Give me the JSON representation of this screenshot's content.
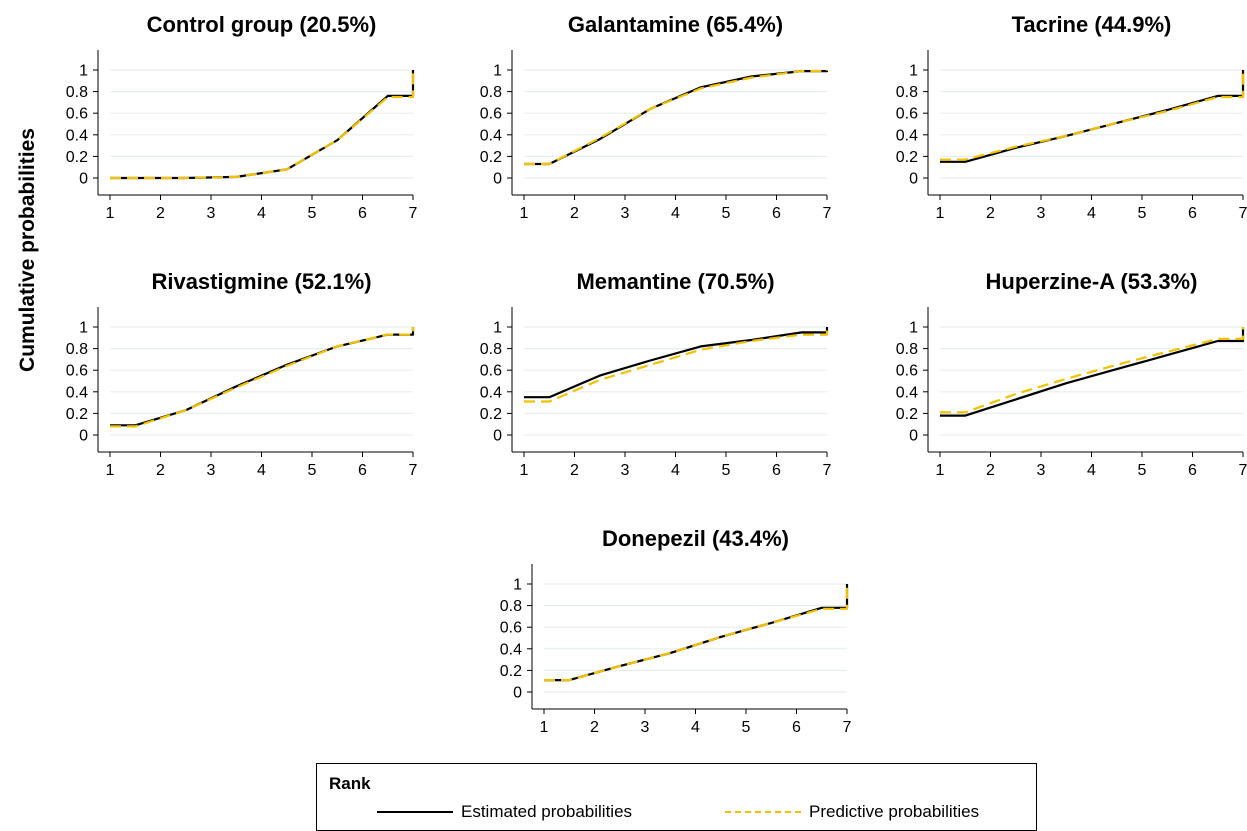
{
  "ylabel": "Cumulative probabilities",
  "colors": {
    "estimated": "#000000",
    "predictive": "#f2c200",
    "grid": "#e6efee",
    "axis": "#000000"
  },
  "legend": {
    "title": "Rank",
    "estimated_label": "Estimated probabilities",
    "predictive_label": "Predictive probabilities"
  },
  "chart_data": [
    {
      "type": "line",
      "title": "Control group (20.5%)",
      "xlabel": "",
      "ylabel": "Cumulative probabilities",
      "xlim": [
        1,
        7
      ],
      "ylim": [
        0,
        1
      ],
      "xticks": [
        "1",
        "2",
        "3",
        "4",
        "5",
        "6",
        "7"
      ],
      "yticks": [
        "0",
        "0.2",
        "0.4",
        "0.6",
        "0.8",
        "1"
      ],
      "grid": true,
      "step": true,
      "series": [
        {
          "name": "Estimated probabilities",
          "x": [
            1,
            2,
            3,
            4,
            5,
            6,
            7
          ],
          "values": [
            0.0,
            0.0,
            0.01,
            0.08,
            0.35,
            0.76,
            1.0
          ]
        },
        {
          "name": "Predictive probabilities",
          "x": [
            1,
            2,
            3,
            4,
            5,
            6,
            7
          ],
          "values": [
            0.0,
            0.0,
            0.01,
            0.08,
            0.35,
            0.75,
            1.0
          ]
        }
      ]
    },
    {
      "type": "line",
      "title": "Galantamine (65.4%)",
      "xlabel": "",
      "ylabel": "",
      "xlim": [
        1,
        7
      ],
      "ylim": [
        0,
        1
      ],
      "xticks": [
        "1",
        "2",
        "3",
        "4",
        "5",
        "6",
        "7"
      ],
      "yticks": [
        "0",
        "0.2",
        "0.4",
        "0.6",
        "0.8",
        "1"
      ],
      "grid": true,
      "step": true,
      "series": [
        {
          "name": "Estimated probabilities",
          "x": [
            1,
            2,
            3,
            4,
            5,
            6,
            7
          ],
          "values": [
            0.13,
            0.36,
            0.64,
            0.84,
            0.94,
            0.99,
            1.0
          ]
        },
        {
          "name": "Predictive probabilities",
          "x": [
            1,
            2,
            3,
            4,
            5,
            6,
            7
          ],
          "values": [
            0.13,
            0.37,
            0.64,
            0.83,
            0.93,
            0.99,
            1.0
          ]
        }
      ]
    },
    {
      "type": "line",
      "title": "Tacrine (44.9%)",
      "xlabel": "",
      "ylabel": "",
      "xlim": [
        1,
        7
      ],
      "ylim": [
        0,
        1
      ],
      "xticks": [
        "1",
        "2",
        "3",
        "4",
        "5",
        "6",
        "7"
      ],
      "yticks": [
        "0",
        "0.2",
        "0.4",
        "0.6",
        "0.8",
        "1"
      ],
      "grid": true,
      "step": true,
      "series": [
        {
          "name": "Estimated probabilities",
          "x": [
            1,
            2,
            3,
            4,
            5,
            6,
            7
          ],
          "values": [
            0.15,
            0.28,
            0.39,
            0.51,
            0.63,
            0.76,
            1.0
          ]
        },
        {
          "name": "Predictive probabilities",
          "x": [
            1,
            2,
            3,
            4,
            5,
            6,
            7
          ],
          "values": [
            0.17,
            0.29,
            0.39,
            0.51,
            0.62,
            0.75,
            1.0
          ]
        }
      ]
    },
    {
      "type": "line",
      "title": "Rivastigmine (52.1%)",
      "xlabel": "",
      "ylabel": "Cumulative probabilities",
      "xlim": [
        1,
        7
      ],
      "ylim": [
        0,
        1
      ],
      "xticks": [
        "1",
        "2",
        "3",
        "4",
        "5",
        "6",
        "7"
      ],
      "yticks": [
        "0",
        "0.2",
        "0.4",
        "0.6",
        "0.8",
        "1"
      ],
      "grid": true,
      "step": true,
      "series": [
        {
          "name": "Estimated probabilities",
          "x": [
            1,
            2,
            3,
            4,
            5,
            6,
            7
          ],
          "values": [
            0.09,
            0.23,
            0.45,
            0.65,
            0.82,
            0.93,
            1.0
          ]
        },
        {
          "name": "Predictive probabilities",
          "x": [
            1,
            2,
            3,
            4,
            5,
            6,
            7
          ],
          "values": [
            0.08,
            0.23,
            0.44,
            0.64,
            0.82,
            0.93,
            1.0
          ]
        }
      ]
    },
    {
      "type": "line",
      "title": "Memantine (70.5%)",
      "xlabel": "",
      "ylabel": "",
      "xlim": [
        1,
        7
      ],
      "ylim": [
        0,
        1
      ],
      "xticks": [
        "1",
        "2",
        "3",
        "4",
        "5",
        "6",
        "7"
      ],
      "yticks": [
        "0",
        "0.2",
        "0.4",
        "0.6",
        "0.8",
        "1"
      ],
      "grid": true,
      "step": true,
      "series": [
        {
          "name": "Estimated probabilities",
          "x": [
            1,
            2,
            3,
            4,
            5,
            6,
            7
          ],
          "values": [
            0.35,
            0.55,
            0.69,
            0.82,
            0.88,
            0.95,
            1.0
          ]
        },
        {
          "name": "Predictive probabilities",
          "x": [
            1,
            2,
            3,
            4,
            5,
            6,
            7
          ],
          "values": [
            0.31,
            0.51,
            0.65,
            0.79,
            0.87,
            0.93,
            1.0
          ]
        }
      ]
    },
    {
      "type": "line",
      "title": "Huperzine-A (53.3%)",
      "xlabel": "",
      "ylabel": "",
      "xlim": [
        1,
        7
      ],
      "ylim": [
        0,
        1
      ],
      "xticks": [
        "1",
        "2",
        "3",
        "4",
        "5",
        "6",
        "7"
      ],
      "yticks": [
        "0",
        "0.2",
        "0.4",
        "0.6",
        "0.8",
        "1"
      ],
      "grid": true,
      "step": true,
      "series": [
        {
          "name": "Estimated probabilities",
          "x": [
            1,
            2,
            3,
            4,
            5,
            6,
            7
          ],
          "values": [
            0.18,
            0.33,
            0.48,
            0.61,
            0.74,
            0.87,
            1.0
          ]
        },
        {
          "name": "Predictive probabilities",
          "x": [
            1,
            2,
            3,
            4,
            5,
            6,
            7
          ],
          "values": [
            0.21,
            0.38,
            0.52,
            0.65,
            0.77,
            0.89,
            1.0
          ]
        }
      ]
    },
    {
      "type": "line",
      "title": "Donepezil (43.4%)",
      "xlabel": "",
      "ylabel": "",
      "xlim": [
        1,
        7
      ],
      "ylim": [
        0,
        1
      ],
      "xticks": [
        "1",
        "2",
        "3",
        "4",
        "5",
        "6",
        "7"
      ],
      "yticks": [
        "0",
        "0.2",
        "0.4",
        "0.6",
        "0.8",
        "1"
      ],
      "grid": true,
      "step": true,
      "series": [
        {
          "name": "Estimated probabilities",
          "x": [
            1,
            2,
            3,
            4,
            5,
            6,
            7
          ],
          "values": [
            0.11,
            0.24,
            0.36,
            0.51,
            0.64,
            0.78,
            1.0
          ]
        },
        {
          "name": "Predictive probabilities",
          "x": [
            1,
            2,
            3,
            4,
            5,
            6,
            7
          ],
          "values": [
            0.11,
            0.24,
            0.36,
            0.51,
            0.64,
            0.77,
            1.0
          ]
        }
      ]
    }
  ]
}
